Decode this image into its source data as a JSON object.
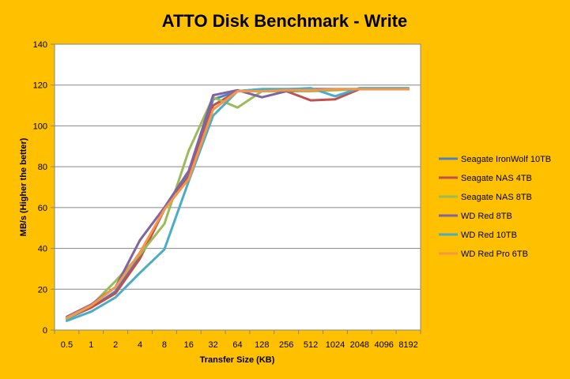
{
  "chart_data": {
    "type": "line",
    "title": "ATTO Disk Benchmark - Write",
    "xlabel": "Transfer Size (KB)",
    "ylabel": "MB/s (Higher the better)",
    "categories": [
      "0.5",
      "1",
      "2",
      "4",
      "8",
      "16",
      "32",
      "64",
      "128",
      "256",
      "512",
      "1024",
      "2048",
      "4096",
      "8192"
    ],
    "ylim": [
      0,
      140
    ],
    "yticks": [
      0,
      20,
      40,
      60,
      80,
      100,
      120,
      140
    ],
    "grid": "horizontal",
    "legend": "right",
    "series": [
      {
        "name": "Seagate IronWolf 10TB",
        "color": "#4F81BD",
        "values": [
          5.5,
          11,
          19,
          36,
          59,
          76,
          113,
          117,
          118,
          118,
          118,
          118,
          118,
          118,
          118
        ]
      },
      {
        "name": "Seagate NAS 4TB",
        "color": "#C0504D",
        "values": [
          6,
          11,
          18,
          35,
          59,
          75,
          110,
          117,
          117,
          117,
          112.5,
          113,
          118,
          118,
          118
        ]
      },
      {
        "name": "Seagate NAS 8TB",
        "color": "#9BBB59",
        "values": [
          5.5,
          12,
          24,
          37,
          52,
          88,
          114,
          109,
          117,
          117,
          117,
          117.5,
          118,
          118,
          118
        ]
      },
      {
        "name": "WD Red 8TB",
        "color": "#8064A2",
        "values": [
          6.5,
          12.5,
          21,
          44,
          60,
          78,
          115,
          117.5,
          114,
          117,
          118,
          118,
          118,
          118,
          118
        ]
      },
      {
        "name": "WD Red 10TB",
        "color": "#4BACC6",
        "values": [
          4.5,
          9,
          16,
          28,
          39.5,
          73,
          105,
          117,
          118,
          118,
          118.5,
          114.5,
          118.5,
          118.5,
          118.5
        ]
      },
      {
        "name": "WD Red Pro 6TB",
        "color": "#F79646",
        "values": [
          6,
          12,
          21,
          38,
          59,
          74,
          108,
          117,
          117,
          117.5,
          117.5,
          118,
          118,
          118,
          118
        ]
      }
    ]
  }
}
